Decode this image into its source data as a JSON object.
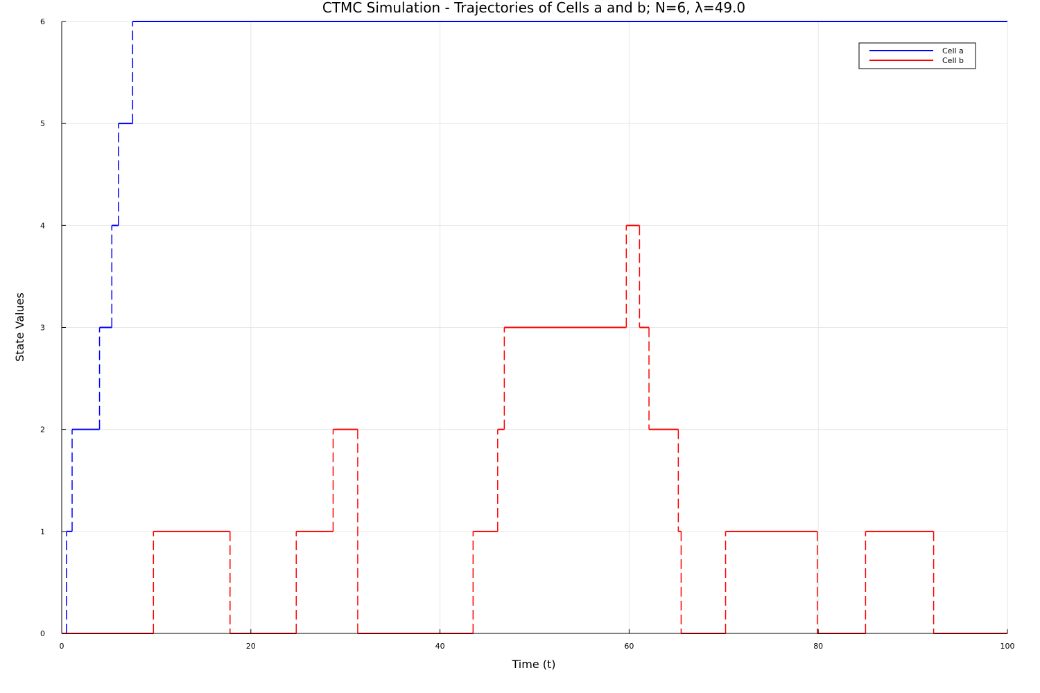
{
  "chart_data": {
    "type": "line",
    "title": "CTMC Simulation - Trajectories of Cells a and b; N=6, λ=49.0",
    "xlabel": "Time (t)",
    "ylabel": "State Values",
    "xlim": [
      0,
      100
    ],
    "ylim": [
      0,
      6
    ],
    "xticks": [
      0,
      20,
      40,
      60,
      80,
      100
    ],
    "yticks": [
      0,
      1,
      2,
      3,
      4,
      5,
      6
    ],
    "grid": true,
    "legend_position": "top-right",
    "step": true,
    "series": [
      {
        "name": "Cell a",
        "color": "#0000ff",
        "points": [
          [
            0,
            0
          ],
          [
            0.5,
            1
          ],
          [
            1.1,
            2
          ],
          [
            4.0,
            3
          ],
          [
            5.3,
            4
          ],
          [
            6.0,
            5
          ],
          [
            7.5,
            6
          ],
          [
            100,
            6
          ]
        ]
      },
      {
        "name": "Cell b",
        "color": "#ff0000",
        "points": [
          [
            0,
            0
          ],
          [
            9.7,
            1
          ],
          [
            17.8,
            0
          ],
          [
            24.8,
            1
          ],
          [
            28.7,
            2
          ],
          [
            31.3,
            0
          ],
          [
            43.5,
            1
          ],
          [
            46.1,
            2
          ],
          [
            46.8,
            3
          ],
          [
            59.7,
            4
          ],
          [
            61.1,
            3
          ],
          [
            62.1,
            2
          ],
          [
            65.2,
            1
          ],
          [
            65.5,
            0
          ],
          [
            70.2,
            1
          ],
          [
            79.9,
            0
          ],
          [
            85.0,
            1
          ],
          [
            92.2,
            0
          ],
          [
            100,
            0
          ]
        ]
      }
    ]
  }
}
